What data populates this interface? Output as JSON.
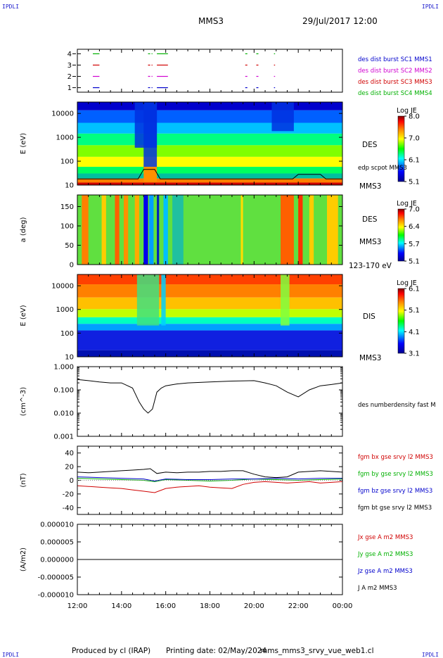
{
  "header": {
    "corner_label": "IPDLI",
    "spacecraft": "MMS3",
    "datetime": "29/Jul/2017 12:00"
  },
  "footer": {
    "produced_by": "Produced by cl (IRAP)",
    "printing_date": "Printing date: 02/May/2024",
    "file_name": "mms_mms3_srvy_vue_web1.cl"
  },
  "colors": {
    "black": "#000000",
    "red": "#d00000",
    "green": "#00b000",
    "blue": "#0000cc",
    "magenta": "#d000d0",
    "spectrum": [
      "#00008f",
      "#0000ff",
      "#00ffff",
      "#00ff00",
      "#ffff00",
      "#ff8000",
      "#ff0000",
      "#800000"
    ]
  },
  "chart_data": [
    {
      "type": "scatter",
      "panel": "burst",
      "ylabel": "",
      "yticks": [
        "1",
        "2",
        "3",
        "4"
      ],
      "ylim": [
        0.6,
        4.4
      ],
      "legend": [
        {
          "name": "des dist burst SC1 MMS1",
          "color": "#0000cc",
          "y": 1
        },
        {
          "name": "des dist burst SC2 MMS2",
          "color": "#d000d0",
          "y": 2
        },
        {
          "name": "des dist burst SC3 MMS3",
          "color": "#d00000",
          "y": 3
        },
        {
          "name": "des dist burst SC4 MMS4",
          "color": "#00b000",
          "y": 4
        }
      ],
      "intervals_hours": [
        [
          12.7,
          13.0
        ],
        [
          15.2,
          15.4
        ],
        [
          15.6,
          16.1
        ],
        [
          19.6,
          19.7
        ],
        [
          20.1,
          20.2
        ],
        [
          20.9,
          20.95
        ]
      ]
    },
    {
      "type": "heatmap",
      "panel": "des-energy",
      "ylabel": "E (eV)",
      "yscale": "log",
      "yticks": [
        "10",
        "100",
        "1000",
        "10000"
      ],
      "ylim": [
        10,
        30000
      ],
      "right_labels": [
        "DES",
        "edp scpot MMS3",
        "MMS3"
      ],
      "colorbar": {
        "title": "Log JE",
        "ticks": [
          "8.0",
          "7.0",
          "6.1",
          "5.1"
        ],
        "range": [
          5.1,
          8.0
        ]
      }
    },
    {
      "type": "heatmap",
      "panel": "des-pitch",
      "ylabel": "a (deg)",
      "yticks": [
        "0",
        "50",
        "100",
        "150"
      ],
      "ylim": [
        0,
        180
      ],
      "right_labels": [
        "DES",
        "MMS3",
        "123-170 eV"
      ],
      "colorbar": {
        "title": "Log JE",
        "ticks": [
          "7.0",
          "6.4",
          "5.7",
          "5.1"
        ],
        "range": [
          5.1,
          7.0
        ]
      }
    },
    {
      "type": "heatmap",
      "panel": "dis-energy",
      "ylabel": "E (eV)",
      "yscale": "log",
      "yticks": [
        "10",
        "100",
        "1000",
        "10000"
      ],
      "ylim": [
        10,
        30000
      ],
      "right_labels": [
        "DIS",
        "MMS3"
      ],
      "colorbar": {
        "title": "Log JE",
        "ticks": [
          "6.1",
          "5.1",
          "4.1",
          "3.1"
        ],
        "range": [
          3.1,
          6.1
        ]
      }
    },
    {
      "type": "line",
      "panel": "density",
      "ylabel": "(cm^-3)",
      "yscale": "log",
      "yticks": [
        "0.001",
        "0.010",
        "0.100",
        "1.000"
      ],
      "ylim": [
        0.001,
        1.0
      ],
      "series": [
        {
          "name": "des numberdensity fast M",
          "color": "#000000",
          "x": [
            12.0,
            12.5,
            13.0,
            13.5,
            14.0,
            14.5,
            14.8,
            15.0,
            15.2,
            15.4,
            15.6,
            15.8,
            16.0,
            16.5,
            17.0,
            18.0,
            19.0,
            20.0,
            20.5,
            21.0,
            21.5,
            22.0,
            22.5,
            23.0,
            23.5,
            24.0
          ],
          "y": [
            0.28,
            0.25,
            0.22,
            0.2,
            0.2,
            0.12,
            0.03,
            0.015,
            0.01,
            0.015,
            0.08,
            0.12,
            0.15,
            0.18,
            0.2,
            0.22,
            0.24,
            0.25,
            0.2,
            0.15,
            0.08,
            0.05,
            0.1,
            0.15,
            0.17,
            0.2
          ]
        }
      ]
    },
    {
      "type": "line",
      "panel": "bfield",
      "ylabel": "(nT)",
      "yticks": [
        "-40",
        "-20",
        "0",
        "20",
        "40"
      ],
      "ylim": [
        -50,
        50
      ],
      "series": [
        {
          "name": "fgm bx gse srvy l2 MMS3",
          "color": "#d00000",
          "x": [
            12.0,
            12.5,
            13.0,
            13.5,
            14.0,
            14.5,
            15.0,
            15.5,
            16.0,
            16.5,
            17.0,
            17.5,
            18.0,
            18.5,
            19.0,
            19.5,
            20.0,
            20.5,
            21.0,
            21.5,
            22.0,
            22.5,
            23.0,
            23.5,
            24.0
          ],
          "y": [
            -8,
            -9,
            -10,
            -11,
            -12,
            -14,
            -16,
            -18,
            -12,
            -10,
            -9,
            -8,
            -10,
            -11,
            -12,
            -6,
            -3,
            -2,
            -3,
            -4,
            -3,
            -2,
            -4,
            -3,
            -2
          ]
        },
        {
          "name": "fgm by gse srvy l2 MMS3",
          "color": "#00b000",
          "x": [
            12.0,
            13.0,
            14.0,
            15.0,
            15.5,
            16.0,
            17.0,
            18.0,
            19.0,
            20.0,
            21.0,
            22.0,
            23.0,
            24.0
          ],
          "y": [
            3,
            2,
            1,
            0,
            -2,
            1,
            0,
            -1,
            0,
            2,
            1,
            0,
            1,
            2
          ]
        },
        {
          "name": "fgm bz gse srvy l2 MMS3",
          "color": "#0000cc",
          "x": [
            12.0,
            13.0,
            14.0,
            15.0,
            15.5,
            16.0,
            17.0,
            18.0,
            19.0,
            20.0,
            21.0,
            22.0,
            23.0,
            24.0
          ],
          "y": [
            5,
            4,
            3,
            2,
            -1,
            2,
            1,
            1,
            2,
            2,
            3,
            2,
            3,
            3
          ]
        },
        {
          "name": "fgm bt gse srvy l2 MMS3",
          "color": "#000000",
          "x": [
            12.0,
            12.5,
            13.0,
            13.5,
            14.0,
            14.5,
            15.0,
            15.3,
            15.6,
            16.0,
            16.5,
            17.0,
            17.5,
            18.0,
            18.5,
            19.0,
            19.5,
            20.0,
            20.5,
            21.0,
            21.5,
            22.0,
            22.5,
            23.0,
            23.5,
            24.0
          ],
          "y": [
            12,
            11,
            12,
            13,
            14,
            15,
            16,
            17,
            10,
            12,
            11,
            12,
            12,
            13,
            13,
            14,
            14,
            9,
            5,
            4,
            5,
            12,
            13,
            14,
            13,
            12
          ]
        }
      ]
    },
    {
      "type": "line",
      "panel": "current",
      "ylabel": "(A/m2)",
      "yticks": [
        "-0.000010",
        "-0.000005",
        "0.000000",
        "0.000005",
        "0.000010"
      ],
      "ylim": [
        -1e-05,
        1e-05
      ],
      "xlabel": "",
      "xticks": [
        "12:00",
        "14:00",
        "16:00",
        "18:00",
        "20:00",
        "22:00",
        "00:00"
      ],
      "series": [
        {
          "name": "Jx gse A m2 MMS3",
          "color": "#d00000",
          "x": [
            12.0,
            24.0
          ],
          "y": [
            0.0,
            0.0
          ]
        },
        {
          "name": "Jy gse A m2 MMS3",
          "color": "#00b000",
          "x": [
            12.0,
            24.0
          ],
          "y": [
            0.0,
            0.0
          ]
        },
        {
          "name": "Jz gse A m2 MMS3",
          "color": "#0000cc",
          "x": [
            12.0,
            24.0
          ],
          "y": [
            0.0,
            0.0
          ]
        },
        {
          "name": "J A m2 MMS3",
          "color": "#000000",
          "x": [
            12.0,
            24.0
          ],
          "y": [
            0.0,
            0.0
          ]
        }
      ]
    }
  ]
}
